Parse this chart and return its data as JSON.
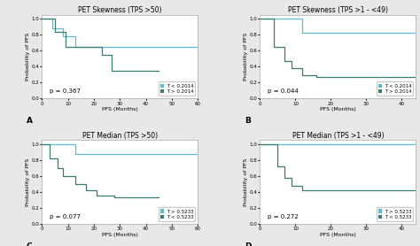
{
  "panels": [
    {
      "title": "PET Skewness (TPS >50)",
      "label": "A",
      "pvalue": "p = 0.367",
      "legend": [
        "T < 0.2014",
        "T > 0.2014"
      ],
      "colors": [
        "#5BBCD6",
        "#3A7D6E"
      ],
      "curve1": {
        "x": [
          0,
          4,
          4,
          8,
          8,
          13,
          13,
          22,
          22,
          60
        ],
        "y": [
          1.0,
          1.0,
          0.88,
          0.88,
          0.78,
          0.78,
          0.65,
          0.65,
          0.65,
          0.65
        ]
      },
      "curve2": {
        "x": [
          0,
          5,
          5,
          9,
          9,
          23,
          23,
          27,
          27,
          45
        ],
        "y": [
          1.0,
          1.0,
          0.83,
          0.83,
          0.65,
          0.65,
          0.55,
          0.55,
          0.35,
          0.35
        ]
      },
      "xlim": [
        0,
        60
      ],
      "ylim": [
        0.0,
        1.05
      ],
      "xticks": [
        0,
        10,
        20,
        30,
        40,
        50,
        60
      ],
      "yticks": [
        0.0,
        0.2,
        0.4,
        0.6,
        0.8,
        1.0
      ]
    },
    {
      "title": "PET Skewness (TPS >1 - <49)",
      "label": "B",
      "pvalue": "p = 0.044",
      "legend": [
        "T < 0.2014",
        "T > 0.2014"
      ],
      "colors": [
        "#5BBCD6",
        "#3A7D6E"
      ],
      "curve1": {
        "x": [
          0,
          12,
          12,
          40,
          40,
          44
        ],
        "y": [
          1.0,
          1.0,
          0.82,
          0.82,
          0.82,
          0.82
        ]
      },
      "curve2": {
        "x": [
          0,
          4,
          4,
          7,
          7,
          9,
          9,
          12,
          12,
          16,
          16,
          44
        ],
        "y": [
          1.0,
          1.0,
          0.65,
          0.65,
          0.47,
          0.47,
          0.38,
          0.38,
          0.29,
          0.29,
          0.27,
          0.27
        ]
      },
      "xlim": [
        0,
        44
      ],
      "ylim": [
        0.0,
        1.05
      ],
      "xticks": [
        0,
        10,
        20,
        30,
        40
      ],
      "yticks": [
        0.0,
        0.2,
        0.4,
        0.6,
        0.8,
        1.0
      ]
    },
    {
      "title": "PET Median (TPS >50)",
      "label": "C",
      "pvalue": "p = 0.077",
      "legend": [
        "T > 0.5233",
        "T < 0.5233"
      ],
      "colors": [
        "#5BBCD6",
        "#3A7D6E"
      ],
      "curve1": {
        "x": [
          0,
          5,
          5,
          13,
          13,
          60
        ],
        "y": [
          1.0,
          1.0,
          1.0,
          1.0,
          0.88,
          0.88
        ]
      },
      "curve2": {
        "x": [
          0,
          3,
          3,
          6,
          6,
          8,
          8,
          13,
          13,
          17,
          17,
          21,
          21,
          28,
          28,
          45
        ],
        "y": [
          1.0,
          1.0,
          0.82,
          0.82,
          0.7,
          0.7,
          0.6,
          0.6,
          0.5,
          0.5,
          0.42,
          0.42,
          0.35,
          0.35,
          0.33,
          0.33
        ]
      },
      "xlim": [
        0,
        60
      ],
      "ylim": [
        0.0,
        1.05
      ],
      "xticks": [
        0,
        10,
        20,
        30,
        40,
        50,
        60
      ],
      "yticks": [
        0.0,
        0.2,
        0.4,
        0.6,
        0.8,
        1.0
      ]
    },
    {
      "title": "PET Median (TPS >1 - <49)",
      "label": "D",
      "pvalue": "p = 0.272",
      "legend": [
        "T > 0.5233",
        "T < 0.5233"
      ],
      "colors": [
        "#5BBCD6",
        "#3A7D6E"
      ],
      "curve1": {
        "x": [
          0,
          5,
          5,
          22,
          22,
          44
        ],
        "y": [
          1.0,
          1.0,
          1.0,
          1.0,
          1.0,
          1.0
        ]
      },
      "curve2": {
        "x": [
          0,
          5,
          5,
          7,
          7,
          9,
          9,
          12,
          12,
          22,
          22,
          44
        ],
        "y": [
          1.0,
          1.0,
          0.72,
          0.72,
          0.58,
          0.58,
          0.48,
          0.48,
          0.42,
          0.42,
          0.42,
          0.42
        ]
      },
      "xlim": [
        0,
        44
      ],
      "ylim": [
        0.0,
        1.05
      ],
      "xticks": [
        0,
        10,
        20,
        30,
        40
      ],
      "yticks": [
        0.0,
        0.2,
        0.4,
        0.6,
        0.8,
        1.0
      ]
    }
  ],
  "xlabel": "PFS (Months)",
  "ylabel": "Probability of PFS",
  "bg_color": "#e8e8e8",
  "plot_bg": "#ffffff",
  "title_fontsize": 5.5,
  "label_fontsize": 4.5,
  "tick_fontsize": 4.0,
  "legend_fontsize": 4.0,
  "pvalue_fontsize": 5.0
}
